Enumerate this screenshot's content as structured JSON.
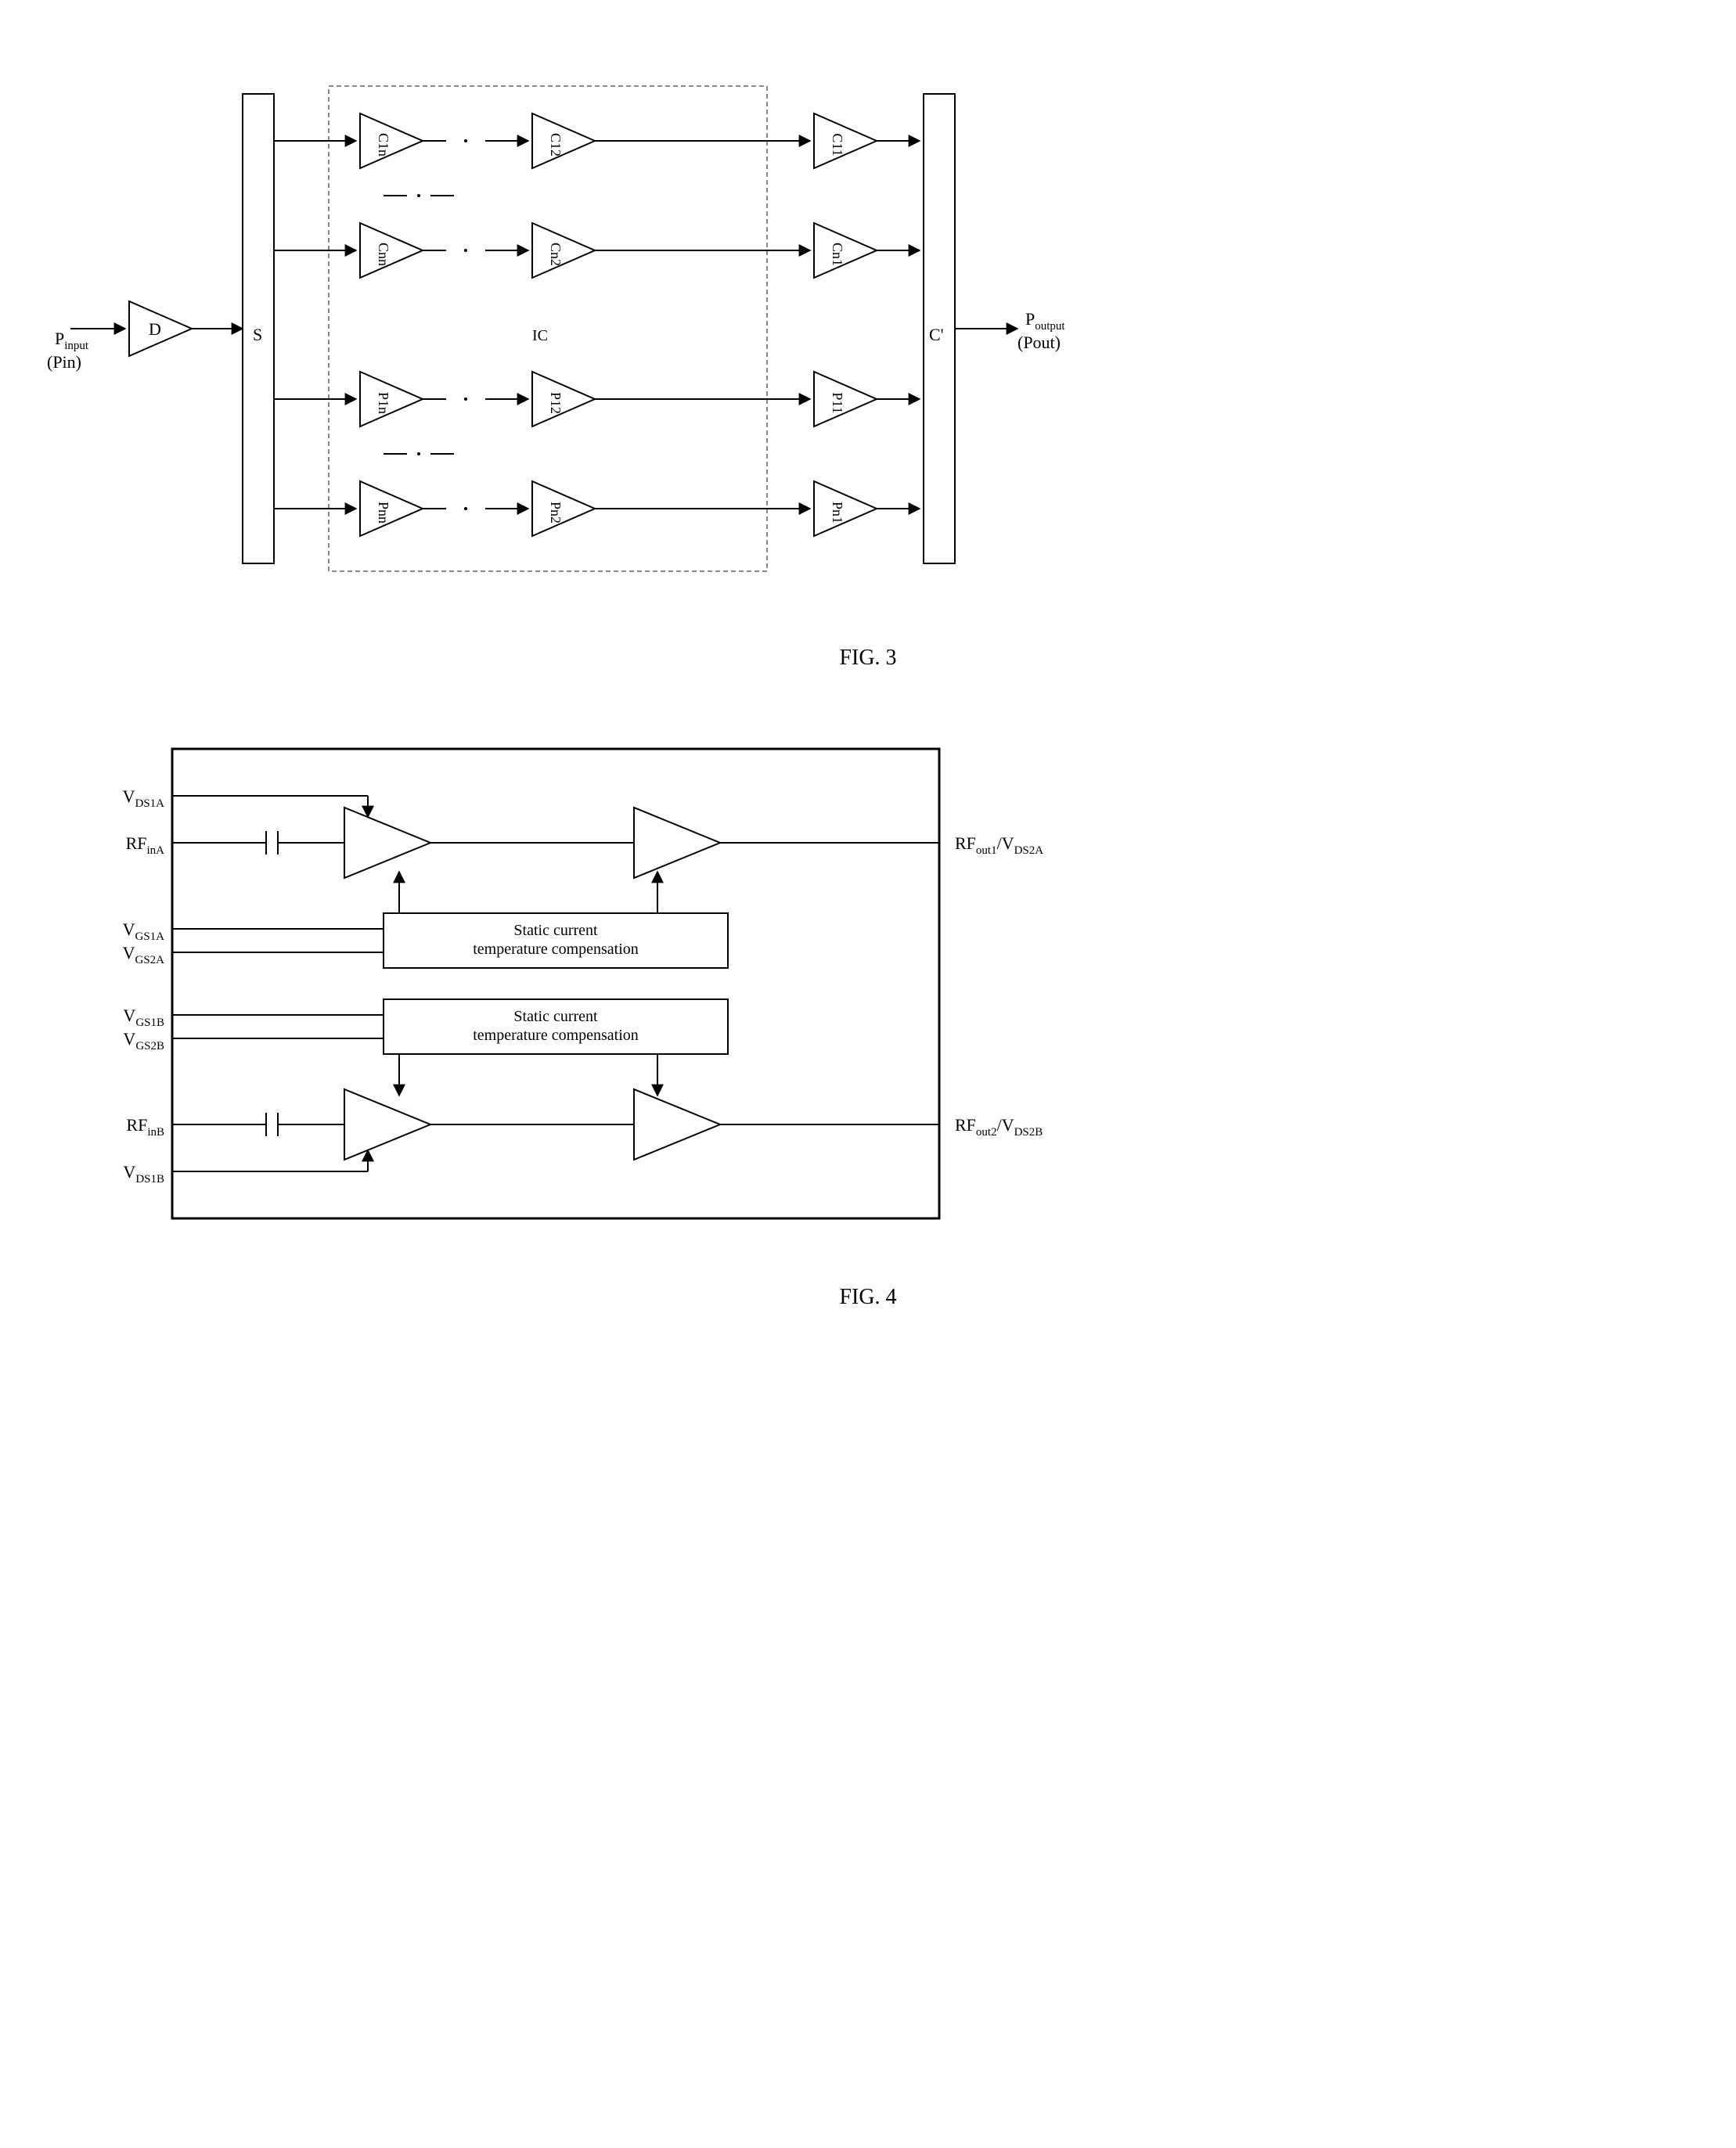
{
  "fig3": {
    "caption": "FIG. 3",
    "input_label": "P",
    "input_sub": "input",
    "input_paren": "(Pin)",
    "output_label": "P",
    "output_sub": "output",
    "output_paren": "(Pout)",
    "D": "D",
    "S": "S",
    "IC": "IC",
    "Cprime": "C'",
    "rows": [
      {
        "amps": [
          "C1n",
          "C12",
          "C11"
        ]
      },
      {
        "amps": [
          "Cnn",
          "Cn2",
          "Cn1"
        ]
      },
      {
        "amps": [
          "P1n",
          "P12",
          "P11"
        ]
      },
      {
        "amps": [
          "Pnn",
          "Pn2",
          "Pn1"
        ]
      }
    ],
    "colors": {
      "stroke": "#000000",
      "ic_border": "#888888",
      "bg": "#ffffff"
    },
    "triangle_w": 80,
    "triangle_h": 70,
    "font_main": 22,
    "font_amp": 18
  },
  "fig4": {
    "caption": "FIG. 4",
    "left_labels": [
      "V_DS1A",
      "RF_inA",
      "V_GS1A",
      "V_GS2A",
      "V_GS1B",
      "V_GS2B",
      "RF_inB",
      "V_DS1B"
    ],
    "right_labels": [
      "RF_out1 / V_DS2A",
      "RF_out2 / V_DS2B"
    ],
    "comp_text_1": "Static current",
    "comp_text_2": "temperature compensation",
    "colors": {
      "stroke": "#000000",
      "bg": "#ffffff"
    },
    "font_label": 22,
    "font_box": 20
  }
}
